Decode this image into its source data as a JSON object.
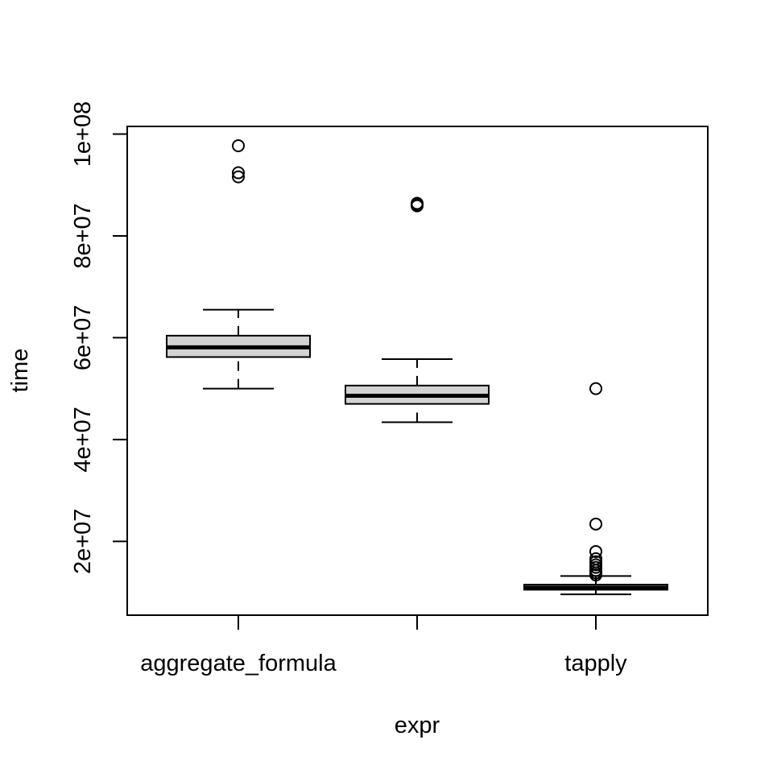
{
  "chart_data": {
    "type": "boxplot",
    "title": "",
    "xlabel": "expr",
    "ylabel": "time",
    "ylim": [
      5500000,
      101500000
    ],
    "yticks": [
      20000000,
      40000000,
      60000000,
      80000000,
      100000000
    ],
    "ytick_labels": [
      "2e+07",
      "4e+07",
      "6e+07",
      "8e+07",
      "1e+08"
    ],
    "categories": [
      "aggregate_formula",
      "",
      "tapply"
    ],
    "box_fill": "#d3d3d3",
    "grid": false,
    "boxes": [
      {
        "name": "aggregate_formula",
        "whisker_low": 50000000,
        "q1": 56200000,
        "median": 58100000,
        "q3": 60400000,
        "whisker_high": 65500000,
        "outliers": [
          97700000,
          92400000,
          91600000
        ]
      },
      {
        "name": "",
        "whisker_low": 43400000,
        "q1": 47000000,
        "median": 48600000,
        "q3": 50600000,
        "whisker_high": 55800000,
        "outliers": [
          86400000,
          86100000,
          85900000
        ]
      },
      {
        "name": "tapply",
        "whisker_low": 9600000,
        "q1": 10500000,
        "median": 10900000,
        "q3": 11500000,
        "whisker_high": 13200000,
        "outliers": [
          50000000,
          23400000,
          18000000,
          16600000,
          16000000,
          15400000,
          14900000,
          14300000,
          13800000,
          13400000
        ]
      }
    ]
  }
}
